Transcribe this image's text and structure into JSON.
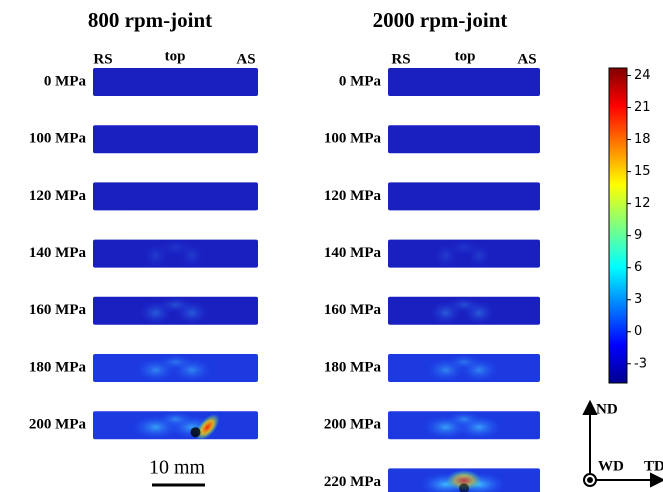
{
  "panels": [
    {
      "title": "800 rpm-joint",
      "edge_labels": [
        "RS",
        "top",
        "AS"
      ],
      "rows": [
        "0 MPa",
        "100 MPa",
        "120 MPa",
        "140 MPa",
        "160 MPa",
        "180 MPa",
        "200 MPa"
      ]
    },
    {
      "title": "2000 rpm-joint",
      "edge_labels": [
        "RS",
        "top",
        "AS"
      ],
      "rows": [
        "0 MPa",
        "100 MPa",
        "120 MPa",
        "140 MPa",
        "160 MPa",
        "180 MPa",
        "200 MPa",
        "220 MPa"
      ]
    }
  ],
  "scale_bar": "10 mm",
  "colorbar": {
    "lim": [
      -4.8,
      24.7
    ],
    "ticks": [
      -3,
      0,
      3,
      6,
      9,
      12,
      15,
      18,
      21,
      24
    ]
  },
  "axes": {
    "normal": "ND",
    "welding": "WD",
    "transverse": "TD"
  }
}
